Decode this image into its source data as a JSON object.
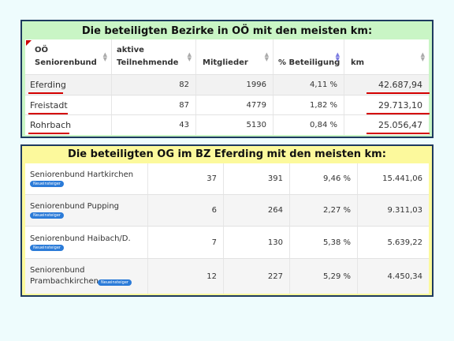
{
  "panel1": {
    "title": "Die beteiligten Bezirke in OÖ mit den meisten km:",
    "headers": [
      "OÖ\nSeniorenbund",
      "aktive\nTeilnehmende",
      "Mitglieder",
      "% Beteiligung",
      "km"
    ],
    "rows": [
      {
        "name": "Eferding",
        "aktive": "82",
        "mitglieder": "1996",
        "beteiligung": "4,11 %",
        "km": "42.687,94"
      },
      {
        "name": "Freistadt",
        "aktive": "87",
        "mitglieder": "4779",
        "beteiligung": "1,82 %",
        "km": "29.713,10"
      },
      {
        "name": "Rohrbach",
        "aktive": "43",
        "mitglieder": "5130",
        "beteiligung": "0,84 %",
        "km": "25.056,47"
      }
    ]
  },
  "panel2": {
    "title": "Die beteiligten OG im BZ Eferding mit den meisten km:",
    "badge": "Neueinsteiger",
    "rows": [
      {
        "name": "Seniorenbund Hartkirchen",
        "aktive": "37",
        "mitglieder": "391",
        "beteiligung": "9,46 %",
        "km": "15.441,06"
      },
      {
        "name": "Seniorenbund Pupping",
        "aktive": "6",
        "mitglieder": "264",
        "beteiligung": "2,27 %",
        "km": "9.311,03"
      },
      {
        "name": "Seniorenbund Haibach/D.",
        "aktive": "7",
        "mitglieder": "130",
        "beteiligung": "5,38 %",
        "km": "5.639,22"
      },
      {
        "name": "Seniorenbund\nPrambachkirchen",
        "aktive": "12",
        "mitglieder": "227",
        "beteiligung": "5,29 %",
        "km": "4.450,34"
      }
    ]
  },
  "colors": {
    "underline": "#d40000",
    "badge": "#2b7bd8",
    "panel1_bg": "#c9f5c5",
    "panel2_bg": "#fcf99c"
  }
}
